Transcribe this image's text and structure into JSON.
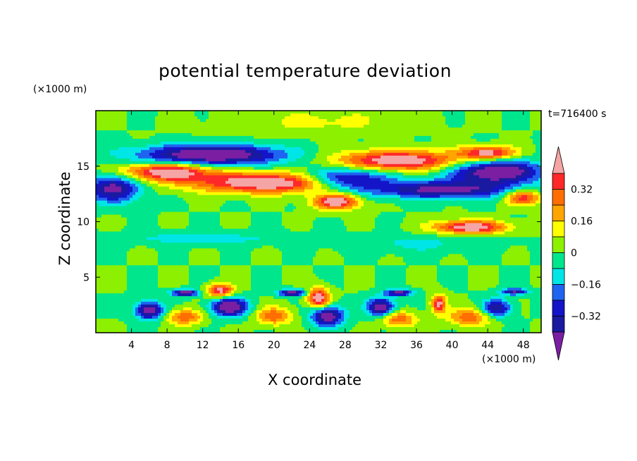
{
  "chart_data": {
    "type": "heatmap",
    "title": "potential temperature deviation",
    "xlabel": "X coordinate",
    "ylabel": "Z coordinate",
    "x_unit": "(×1000 m)",
    "y_unit": "(×1000 m)",
    "time_label": "t=716400 s",
    "xlim": [
      0,
      50
    ],
    "ylim": [
      0,
      20
    ],
    "x_ticks": [
      "4",
      "8",
      "12",
      "16",
      "20",
      "24",
      "28",
      "32",
      "36",
      "40",
      "44",
      "48"
    ],
    "y_ticks": [
      "5",
      "10",
      "15"
    ],
    "colorbar": {
      "tick_labels": [
        "0.32",
        "0.16",
        "0",
        "−0.16",
        "−0.32"
      ],
      "tick_values": [
        0.32,
        0.16,
        0,
        -0.16,
        -0.32
      ],
      "levels": [
        -0.4,
        -0.32,
        -0.24,
        -0.16,
        -0.08,
        0,
        0.08,
        0.16,
        0.24,
        0.32,
        0.4
      ],
      "colors": [
        "#7b1fa2",
        "#1a1aa0",
        "#1414c8",
        "#1e64f0",
        "#00e6e6",
        "#00e68c",
        "#8cf000",
        "#ffff00",
        "#ffa500",
        "#ff6e00",
        "#ff2828",
        "#f5a5a5"
      ]
    },
    "grid": false
  }
}
